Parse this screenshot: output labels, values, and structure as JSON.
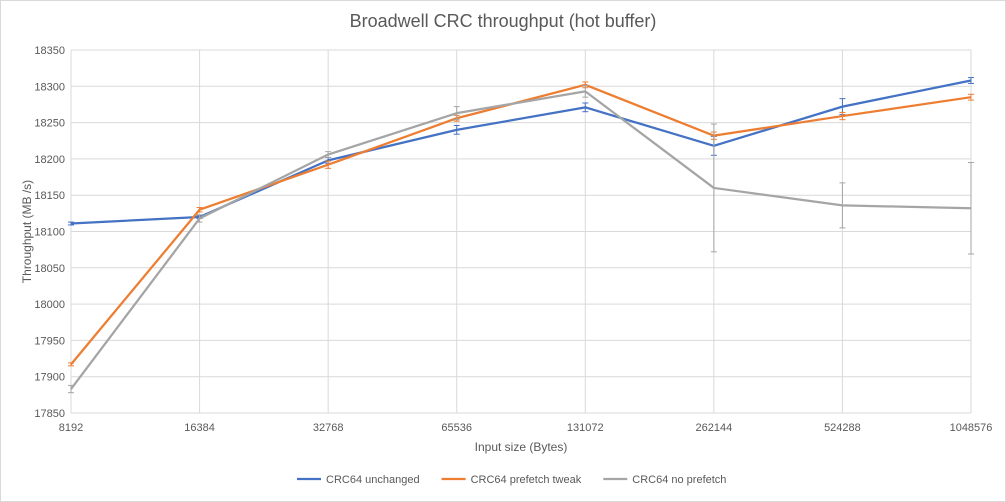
{
  "chart_data": {
    "type": "line",
    "title": "Broadwell  CRC throughput (hot buffer)",
    "xlabel": "Input size (Bytes)",
    "ylabel": "Throughput (MB /s)",
    "categories": [
      "8192",
      "16384",
      "32768",
      "65536",
      "131072",
      "262144",
      "524288",
      "1048576"
    ],
    "ylim": [
      17850,
      18350
    ],
    "yticks": [
      17850,
      17900,
      17950,
      18000,
      18050,
      18100,
      18150,
      18200,
      18250,
      18300,
      18350
    ],
    "grid": true,
    "legend_position": "bottom",
    "series": [
      {
        "name": "CRC64 unchanged",
        "color": "#4472c4",
        "values": [
          18111,
          18120,
          18198,
          18240,
          18271,
          18218,
          18272,
          18308
        ],
        "error": [
          2,
          2,
          4,
          6,
          6,
          13,
          11,
          4
        ]
      },
      {
        "name": "CRC64 prefetch tweak",
        "color": "#ed7d31",
        "values": [
          17917,
          18130,
          18192,
          18256,
          18302,
          18232,
          18259,
          18285
        ],
        "error": [
          2,
          3,
          5,
          4,
          4,
          5,
          5,
          4
        ]
      },
      {
        "name": "CRC64 no prefetch",
        "color": "#a5a5a5",
        "values": [
          17883,
          18118,
          18206,
          18263,
          18293,
          18160,
          18136,
          18132
        ],
        "error": [
          5,
          5,
          4,
          9,
          8,
          88,
          31,
          63
        ]
      }
    ]
  }
}
